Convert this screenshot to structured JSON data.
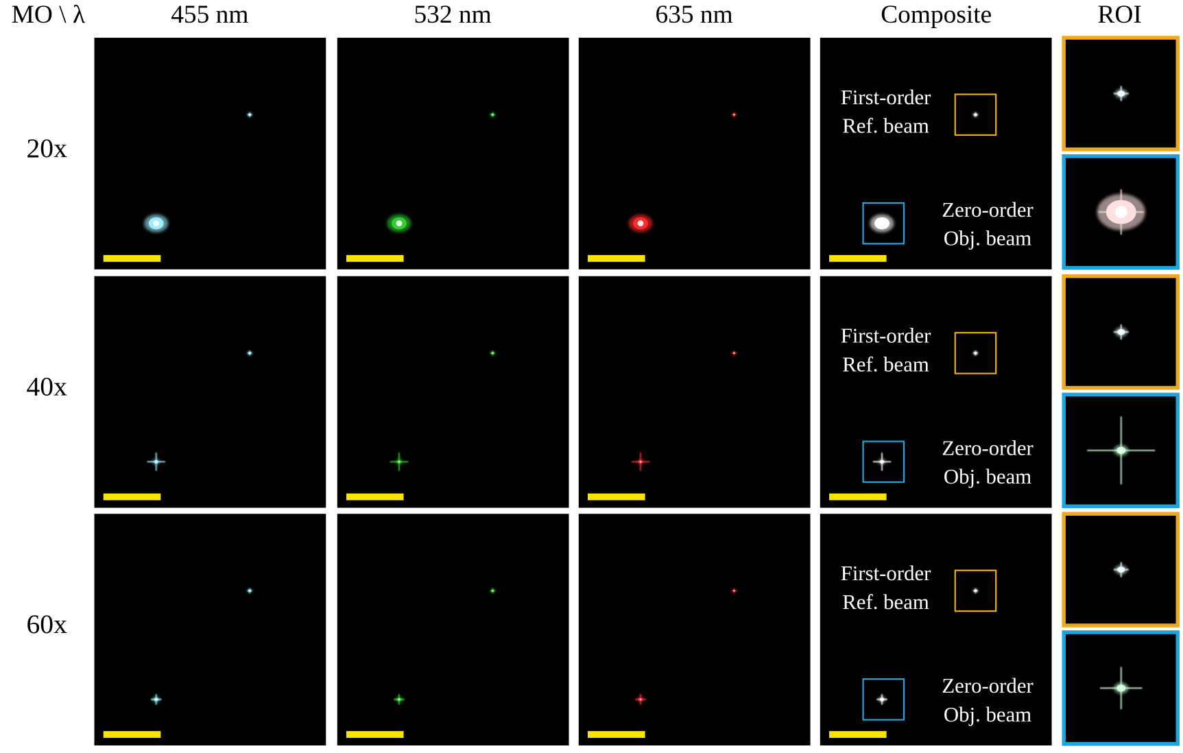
{
  "header": {
    "corner": "MO \\ λ",
    "columns": [
      "455 nm",
      "532 nm",
      "635 nm",
      "Composite",
      "ROI"
    ]
  },
  "rows": [
    {
      "label": "20x",
      "ref_label": [
        "First-order",
        "Ref. beam"
      ],
      "obj_label": [
        "Zero-order",
        "Obj. beam"
      ]
    },
    {
      "label": "40x",
      "ref_label": [
        "First-order",
        "Ref. beam"
      ],
      "obj_label": [
        "Zero-order",
        "Obj. beam"
      ]
    },
    {
      "label": "60x",
      "ref_label": [
        "First-order",
        "Ref. beam"
      ],
      "obj_label": [
        "Zero-order",
        "Obj. beam"
      ]
    }
  ]
}
